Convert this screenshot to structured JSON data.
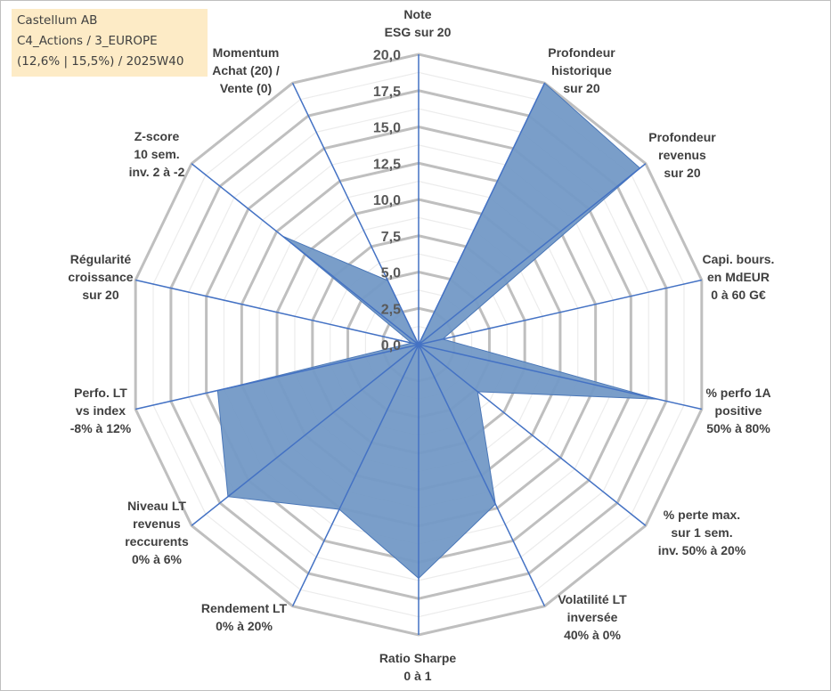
{
  "title_box": {
    "line1": "Castellum AB",
    "line2": "C4_Actions / 3_EUROPE",
    "line3": "(12,6% | 15,5%) / 2025W40"
  },
  "chart_data": {
    "type": "radar",
    "title": "Castellum AB",
    "categories": [
      "Note\nESG sur 20",
      "Profondeur\nhistorique\nsur 20",
      "Profondeur\nrevenus\nsur 20",
      "Capi. bours.\nen MdEUR\n0 à 60 G€",
      "% perfo 1A\npositive\n50% à 80%",
      "% perte max.\nsur 1 sem.\ninv. 50% à 20%",
      "Volatilité LT\ninversée\n40% à 0%",
      "Ratio Sharpe\n0 à 1",
      "Rendement LT\n0% à 20%",
      "Niveau LT\nrevenus\nreccurents\n0% à 6%",
      "Perfo. LT\nvs index\n-8% à 12%",
      "Régularité\ncroissance\nsur 20",
      "Z-score\n10 sem.\ninv. 2 à -2",
      "Momentum\nAchat (20) /\nVente (0)"
    ],
    "series": [
      {
        "name": "Castellum AB",
        "values": [
          0,
          20,
          19.5,
          1.7,
          16.9,
          5.2,
          12.2,
          16.1,
          12.6,
          16.8,
          14.2,
          0.5,
          12.0,
          4.9
        ],
        "color": "#7399c6"
      }
    ],
    "rlim": [
      0,
      20
    ],
    "tick_labels": [
      "0,0",
      "2,5",
      "5,0",
      "7,5",
      "10,0",
      "12,5",
      "15,0",
      "17,5",
      "20,0"
    ],
    "grid": true,
    "legend": "none"
  }
}
